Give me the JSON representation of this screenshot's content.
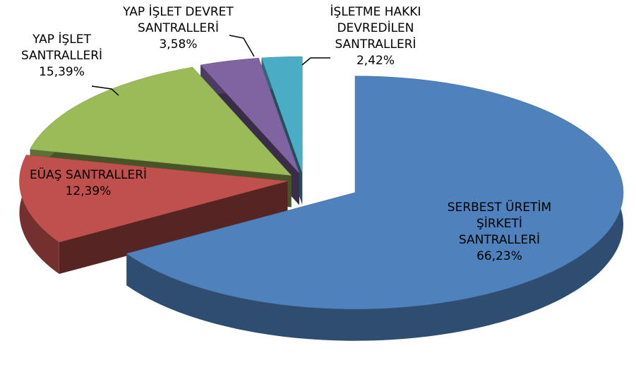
{
  "chart_data": {
    "type": "pie",
    "categories": [
      "SERBEST ÜRETİM ŞİRKETİ SANTRALLERİ",
      "EÜAŞ SANTRALLERİ",
      "YAP İŞLET SANTRALLERİ",
      "YAP İŞLET DEVRET SANTRALLERİ",
      "İŞLETME HAKKI DEVREDİLEN SANTRALLERİ"
    ],
    "values": [
      66.23,
      12.39,
      15.39,
      3.58,
      2.42
    ],
    "value_labels": [
      "66,23%",
      "12,39%",
      "15,39%",
      "3,58%",
      "2,42%"
    ],
    "colors": [
      "#4f81bd",
      "#c0504d",
      "#9bbb59",
      "#8064a2",
      "#4bacc6"
    ]
  }
}
